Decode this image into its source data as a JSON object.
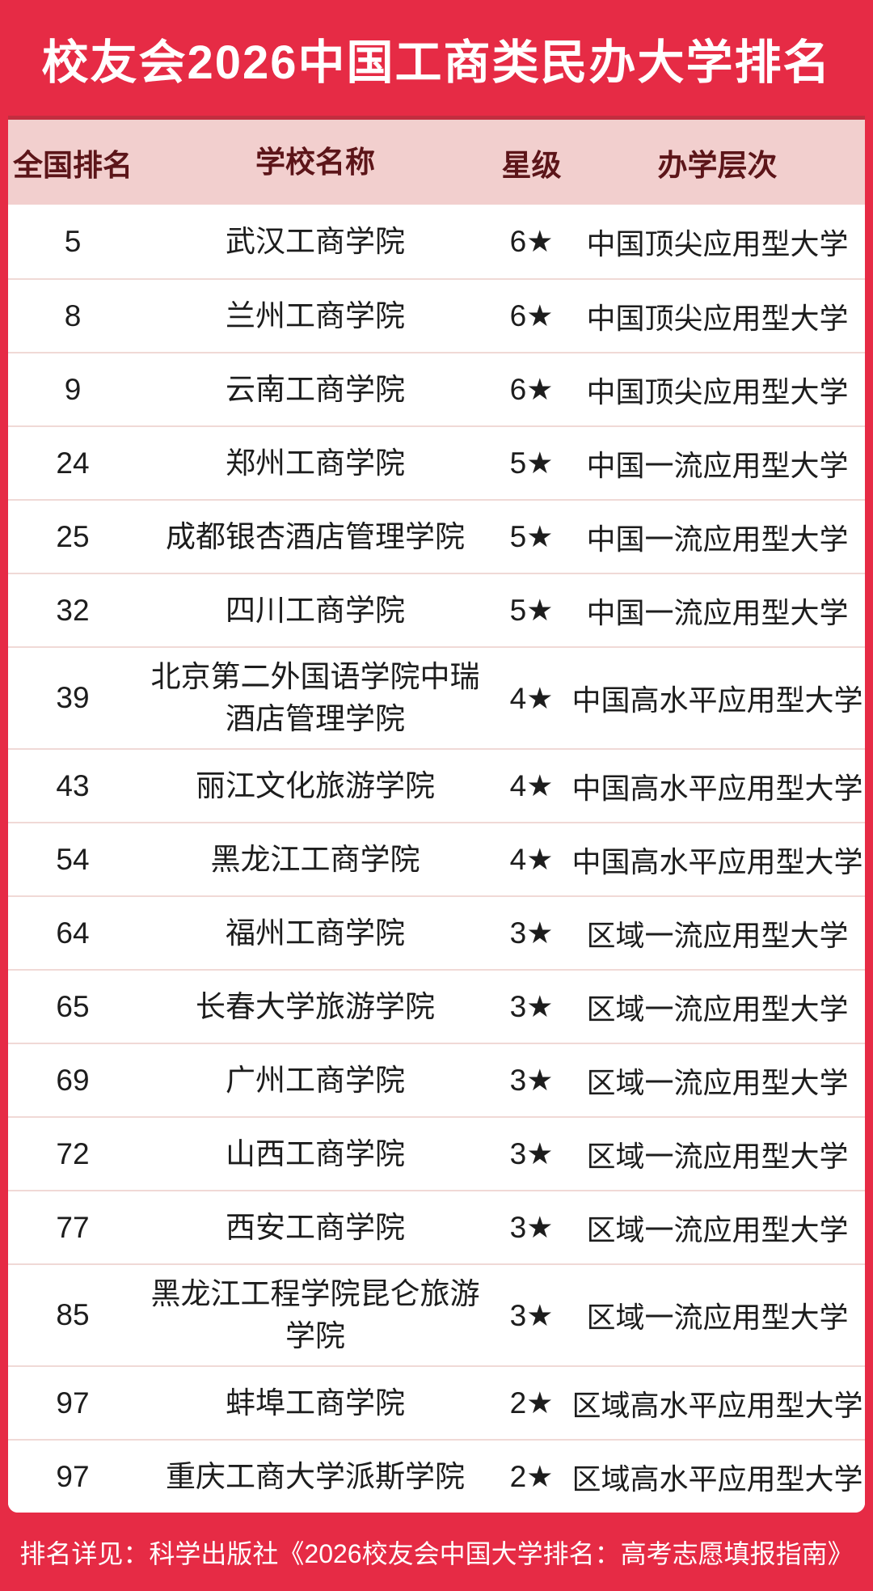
{
  "chart_data": {
    "type": "table",
    "title": "校友会2026中国工商类民办大学排名",
    "columns": [
      "全国排名",
      "学校名称",
      "星级",
      "办学层次"
    ],
    "rows": [
      {
        "rank": "5",
        "school": "武汉工商学院",
        "stars": "6★",
        "level": "中国顶尖应用型大学"
      },
      {
        "rank": "8",
        "school": "兰州工商学院",
        "stars": "6★",
        "level": "中国顶尖应用型大学"
      },
      {
        "rank": "9",
        "school": "云南工商学院",
        "stars": "6★",
        "level": "中国顶尖应用型大学"
      },
      {
        "rank": "24",
        "school": "郑州工商学院",
        "stars": "5★",
        "level": "中国一流应用型大学"
      },
      {
        "rank": "25",
        "school": "成都银杏酒店管理学院",
        "stars": "5★",
        "level": "中国一流应用型大学"
      },
      {
        "rank": "32",
        "school": "四川工商学院",
        "stars": "5★",
        "level": "中国一流应用型大学"
      },
      {
        "rank": "39",
        "school": "北京第二外国语学院中瑞酒店管理学院",
        "stars": "4★",
        "level": "中国高水平应用型大学"
      },
      {
        "rank": "43",
        "school": "丽江文化旅游学院",
        "stars": "4★",
        "level": "中国高水平应用型大学"
      },
      {
        "rank": "54",
        "school": "黑龙江工商学院",
        "stars": "4★",
        "level": "中国高水平应用型大学"
      },
      {
        "rank": "64",
        "school": "福州工商学院",
        "stars": "3★",
        "level": "区域一流应用型大学"
      },
      {
        "rank": "65",
        "school": "长春大学旅游学院",
        "stars": "3★",
        "level": "区域一流应用型大学"
      },
      {
        "rank": "69",
        "school": "广州工商学院",
        "stars": "3★",
        "level": "区域一流应用型大学"
      },
      {
        "rank": "72",
        "school": "山西工商学院",
        "stars": "3★",
        "level": "区域一流应用型大学"
      },
      {
        "rank": "77",
        "school": "西安工商学院",
        "stars": "3★",
        "level": "区域一流应用型大学"
      },
      {
        "rank": "85",
        "school": "黑龙江工程学院昆仑旅游学院",
        "stars": "3★",
        "level": "区域一流应用型大学"
      },
      {
        "rank": "97",
        "school": "蚌埠工商学院",
        "stars": "2★",
        "level": "区域高水平应用型大学"
      },
      {
        "rank": "97",
        "school": "重庆工商大学派斯学院",
        "stars": "2★",
        "level": "区域高水平应用型大学"
      }
    ]
  },
  "footer": {
    "text": "排名详见：科学出版社《2026校友会中国大学排名：高考志愿填报指南》"
  },
  "colors": {
    "accent_red": "#e62b45",
    "dark_red_rule": "#c22e3f",
    "header_pink": "#f2cfce",
    "header_text": "#5c1519",
    "body_text": "#1d1d1d",
    "divider": "#f0d9d6",
    "title_text": "#ffffff"
  }
}
